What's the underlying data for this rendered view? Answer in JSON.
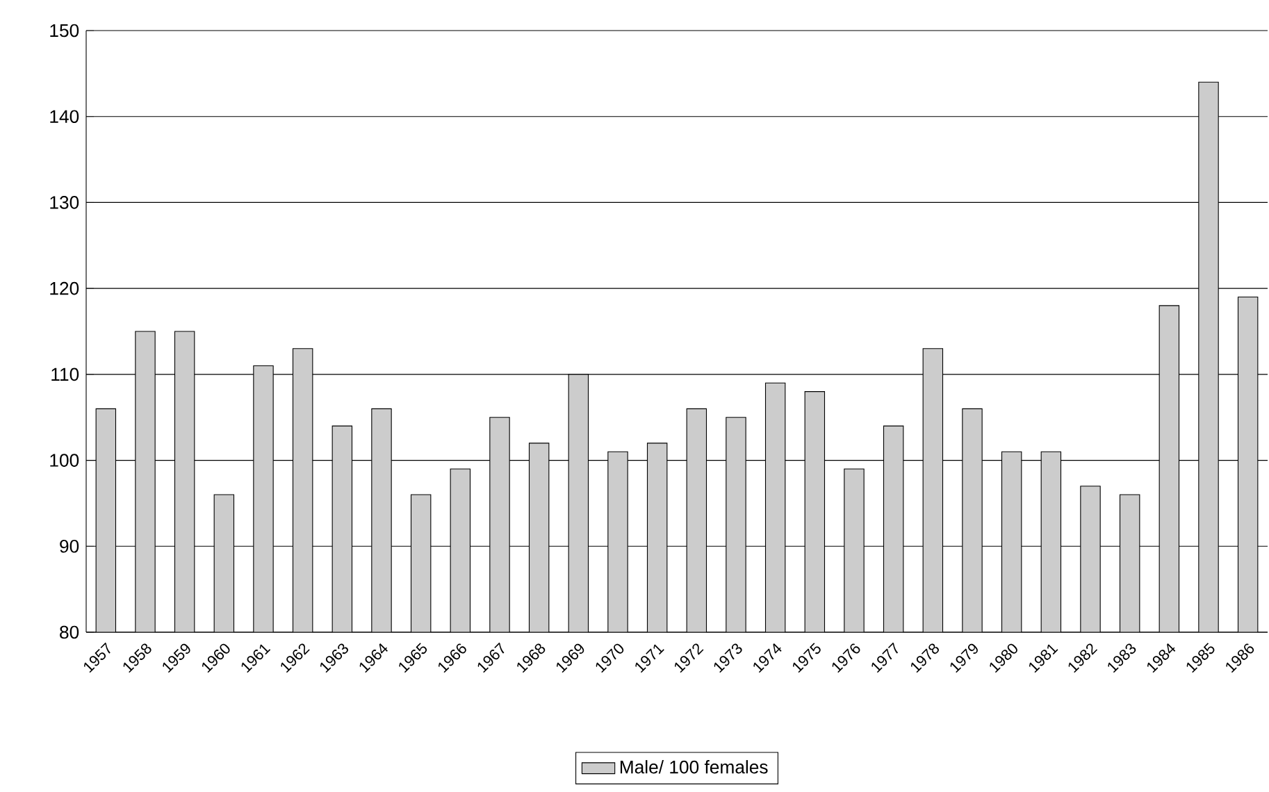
{
  "chart_data": {
    "type": "bar",
    "categories": [
      "1957",
      "1958",
      "1959",
      "1960",
      "1961",
      "1962",
      "1963",
      "1964",
      "1965",
      "1966",
      "1967",
      "1968",
      "1969",
      "1970",
      "1971",
      "1972",
      "1973",
      "1974",
      "1975",
      "1976",
      "1977",
      "1978",
      "1979",
      "1980",
      "1981",
      "1982",
      "1983",
      "1984",
      "1985",
      "1986"
    ],
    "series": [
      {
        "name": "Male/ 100 females",
        "color": "#cccccc",
        "values": [
          106,
          115,
          115,
          96,
          111,
          113,
          104,
          106,
          96,
          99,
          105,
          102,
          110,
          101,
          102,
          106,
          105,
          109,
          108,
          99,
          104,
          113,
          106,
          101,
          101,
          97,
          96,
          118,
          144,
          119
        ]
      }
    ],
    "ylim": [
      80,
      150
    ],
    "yticks": [
      80,
      90,
      100,
      110,
      120,
      130,
      140,
      150
    ],
    "grid": "y",
    "legend": "bottom"
  }
}
